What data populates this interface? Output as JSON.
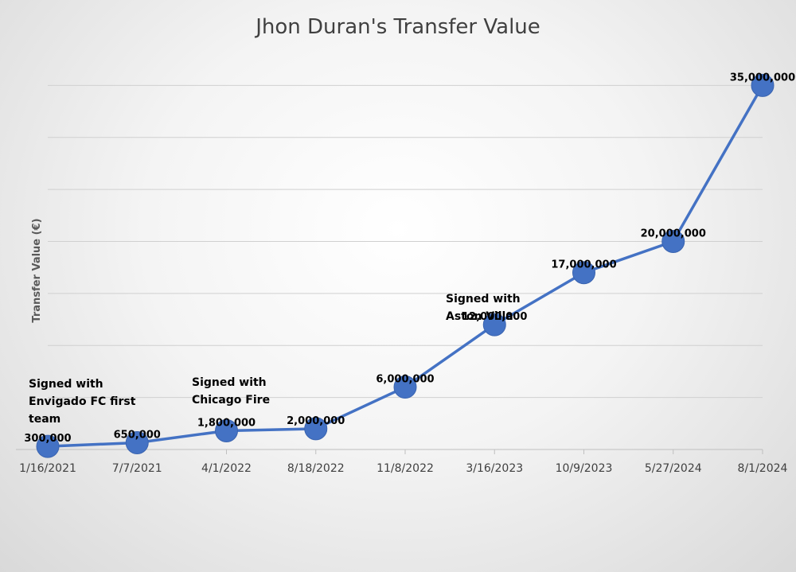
{
  "chart_data": {
    "type": "line",
    "title": "Jhon Duran's Transfer Value",
    "ylabel": "Transfer Value (€)",
    "xlabel": "",
    "categories": [
      "1/16/2021",
      "7/7/2021",
      "4/1/2022",
      "8/18/2022",
      "11/8/2022",
      "3/16/2023",
      "10/9/2023",
      "5/27/2024",
      "8/1/2024"
    ],
    "values": [
      300000,
      650000,
      1800000,
      2000000,
      6000000,
      12000000,
      17000000,
      20000000,
      35000000
    ],
    "data_labels": [
      "300,000",
      "650,000",
      "1,800,000",
      "2,000,000",
      "6,000,000",
      "12,000,000",
      "17,000,000",
      "20,000,000",
      "35,000,000"
    ],
    "ylim": [
      0,
      40000000
    ],
    "grid": true,
    "legend": "none",
    "line_color": "#4472c4",
    "annotations": [
      {
        "category_index": 0,
        "lines": [
          "Signed with",
          "Envigado FC first",
          "team"
        ]
      },
      {
        "category_index": 2,
        "lines": [
          "Signed with",
          "Chicago Fire"
        ]
      },
      {
        "category_index": 5,
        "lines": [
          "Signed with",
          "Aston Villa"
        ]
      }
    ]
  }
}
